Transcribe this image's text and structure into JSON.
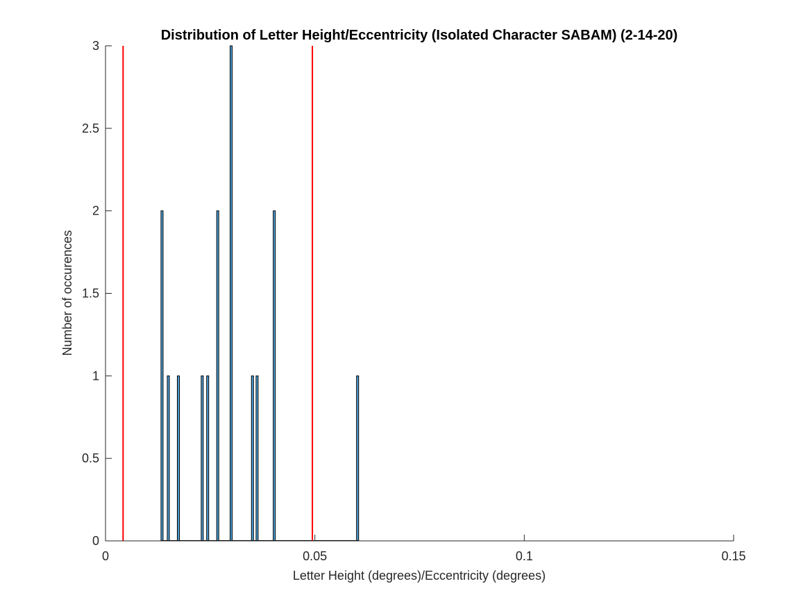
{
  "chart_data": {
    "type": "bar",
    "title": "Distribution of Letter Height/Eccentricity (Isolated Character SABAM) (2-14-20)",
    "xlabel": "Letter Height (degrees)/Eccentricity (degrees)",
    "ylabel": "Number of occurences",
    "xlim": [
      0,
      0.15
    ],
    "ylim": [
      0,
      3
    ],
    "xticks": [
      0,
      0.05,
      0.1,
      0.15
    ],
    "xtick_labels": [
      "0",
      "0.05",
      "0.1",
      "0.15"
    ],
    "yticks": [
      0,
      0.5,
      1,
      1.5,
      2,
      2.5,
      3
    ],
    "ytick_labels": [
      "0",
      "0.5",
      "1",
      "1.5",
      "2",
      "2.5",
      "3"
    ],
    "grid": false,
    "bin_width": 0.0005,
    "bars": [
      {
        "x": 0.0135,
        "count": 2
      },
      {
        "x": 0.015,
        "count": 1
      },
      {
        "x": 0.0174,
        "count": 1
      },
      {
        "x": 0.0231,
        "count": 1
      },
      {
        "x": 0.0244,
        "count": 1
      },
      {
        "x": 0.0268,
        "count": 2
      },
      {
        "x": 0.03,
        "count": 3
      },
      {
        "x": 0.0351,
        "count": 1
      },
      {
        "x": 0.0362,
        "count": 1
      },
      {
        "x": 0.0403,
        "count": 2
      },
      {
        "x": 0.0602,
        "count": 1
      }
    ],
    "bar_color": "#4e9fd6",
    "bar_edge_color": "#000000",
    "reference_lines": [
      {
        "x": 0.0042,
        "color": "#ff0000"
      },
      {
        "x": 0.0494,
        "color": "#ff0000"
      }
    ]
  }
}
